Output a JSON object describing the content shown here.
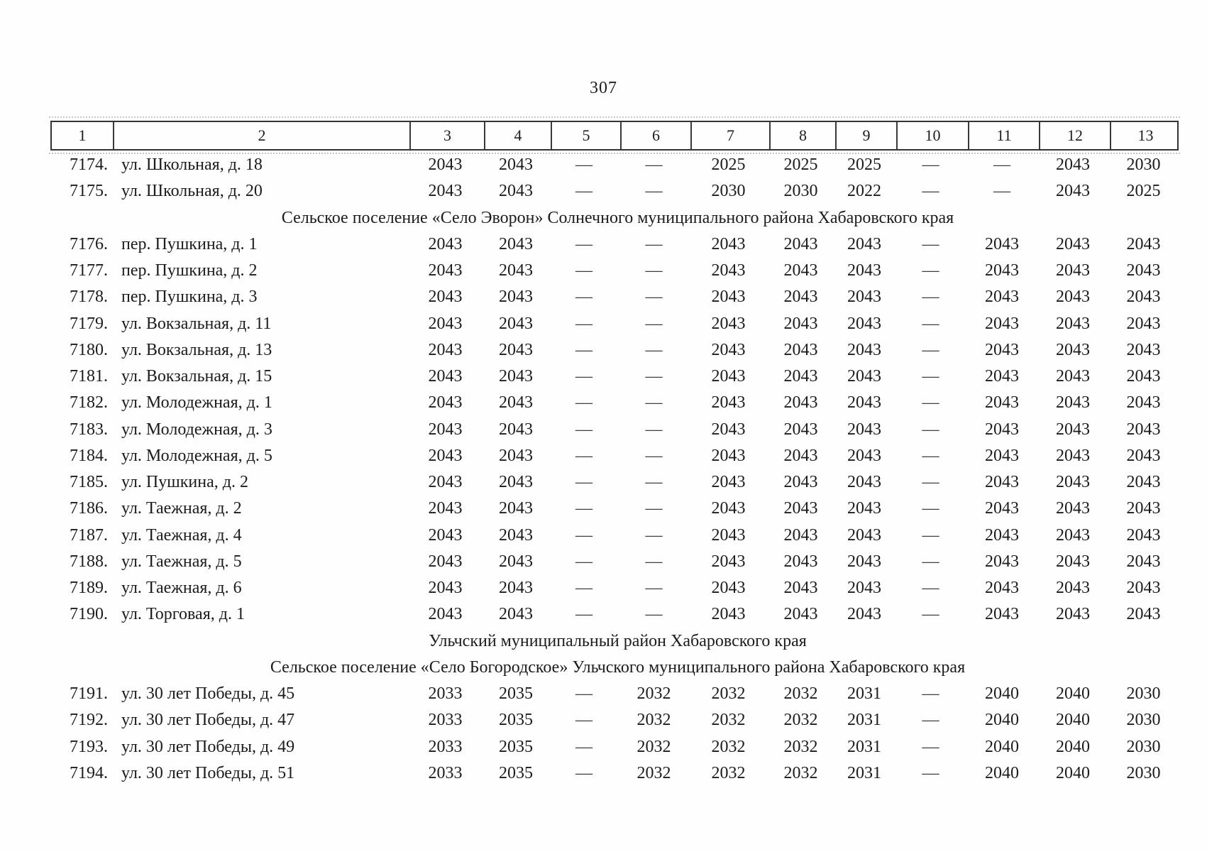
{
  "page": {
    "number": "307"
  },
  "table": {
    "column_headers": [
      "1",
      "2",
      "3",
      "4",
      "5",
      "6",
      "7",
      "8",
      "9",
      "10",
      "11",
      "12",
      "13"
    ],
    "rows": [
      {
        "type": "data",
        "num": "7174.",
        "address": "ул. Школьная, д. 18",
        "values": [
          "2043",
          "2043",
          "—",
          "—",
          "2025",
          "2025",
          "2025",
          "—",
          "—",
          "2043",
          "2030"
        ]
      },
      {
        "type": "data",
        "num": "7175.",
        "address": "ул. Школьная, д. 20",
        "values": [
          "2043",
          "2043",
          "—",
          "—",
          "2030",
          "2030",
          "2022",
          "—",
          "—",
          "2043",
          "2025"
        ]
      },
      {
        "type": "section",
        "label": "Сельское поселение «Село Эворон» Солнечного муниципального района Хабаровского края"
      },
      {
        "type": "data",
        "num": "7176.",
        "address": "пер. Пушкина, д. 1",
        "values": [
          "2043",
          "2043",
          "—",
          "—",
          "2043",
          "2043",
          "2043",
          "—",
          "2043",
          "2043",
          "2043"
        ]
      },
      {
        "type": "data",
        "num": "7177.",
        "address": "пер. Пушкина, д. 2",
        "values": [
          "2043",
          "2043",
          "—",
          "—",
          "2043",
          "2043",
          "2043",
          "—",
          "2043",
          "2043",
          "2043"
        ]
      },
      {
        "type": "data",
        "num": "7178.",
        "address": "пер. Пушкина, д. 3",
        "values": [
          "2043",
          "2043",
          "—",
          "—",
          "2043",
          "2043",
          "2043",
          "—",
          "2043",
          "2043",
          "2043"
        ]
      },
      {
        "type": "data",
        "num": "7179.",
        "address": "ул. Вокзальная, д. 11",
        "values": [
          "2043",
          "2043",
          "—",
          "—",
          "2043",
          "2043",
          "2043",
          "—",
          "2043",
          "2043",
          "2043"
        ]
      },
      {
        "type": "data",
        "num": "7180.",
        "address": "ул. Вокзальная, д. 13",
        "values": [
          "2043",
          "2043",
          "—",
          "—",
          "2043",
          "2043",
          "2043",
          "—",
          "2043",
          "2043",
          "2043"
        ]
      },
      {
        "type": "data",
        "num": "7181.",
        "address": "ул. Вокзальная, д. 15",
        "values": [
          "2043",
          "2043",
          "—",
          "—",
          "2043",
          "2043",
          "2043",
          "—",
          "2043",
          "2043",
          "2043"
        ]
      },
      {
        "type": "data",
        "num": "7182.",
        "address": "ул. Молодежная, д. 1",
        "values": [
          "2043",
          "2043",
          "—",
          "—",
          "2043",
          "2043",
          "2043",
          "—",
          "2043",
          "2043",
          "2043"
        ]
      },
      {
        "type": "data",
        "num": "7183.",
        "address": "ул. Молодежная, д. 3",
        "values": [
          "2043",
          "2043",
          "—",
          "—",
          "2043",
          "2043",
          "2043",
          "—",
          "2043",
          "2043",
          "2043"
        ]
      },
      {
        "type": "data",
        "num": "7184.",
        "address": "ул. Молодежная, д. 5",
        "values": [
          "2043",
          "2043",
          "—",
          "—",
          "2043",
          "2043",
          "2043",
          "—",
          "2043",
          "2043",
          "2043"
        ]
      },
      {
        "type": "data",
        "num": "7185.",
        "address": "ул. Пушкина, д. 2",
        "values": [
          "2043",
          "2043",
          "—",
          "—",
          "2043",
          "2043",
          "2043",
          "—",
          "2043",
          "2043",
          "2043"
        ]
      },
      {
        "type": "data",
        "num": "7186.",
        "address": "ул. Таежная, д. 2",
        "values": [
          "2043",
          "2043",
          "—",
          "—",
          "2043",
          "2043",
          "2043",
          "—",
          "2043",
          "2043",
          "2043"
        ]
      },
      {
        "type": "data",
        "num": "7187.",
        "address": "ул. Таежная, д. 4",
        "values": [
          "2043",
          "2043",
          "—",
          "—",
          "2043",
          "2043",
          "2043",
          "—",
          "2043",
          "2043",
          "2043"
        ]
      },
      {
        "type": "data",
        "num": "7188.",
        "address": "ул. Таежная, д. 5",
        "values": [
          "2043",
          "2043",
          "—",
          "—",
          "2043",
          "2043",
          "2043",
          "—",
          "2043",
          "2043",
          "2043"
        ]
      },
      {
        "type": "data",
        "num": "7189.",
        "address": "ул. Таежная, д. 6",
        "values": [
          "2043",
          "2043",
          "—",
          "—",
          "2043",
          "2043",
          "2043",
          "—",
          "2043",
          "2043",
          "2043"
        ]
      },
      {
        "type": "data",
        "num": "7190.",
        "address": "ул. Торговая, д. 1",
        "values": [
          "2043",
          "2043",
          "—",
          "—",
          "2043",
          "2043",
          "2043",
          "—",
          "2043",
          "2043",
          "2043"
        ]
      },
      {
        "type": "section",
        "label": "Ульчский муниципальный район Хабаровского края"
      },
      {
        "type": "section",
        "label": "Сельское поселение «Село Богородское» Ульчского муниципального района Хабаровского края"
      },
      {
        "type": "data",
        "num": "7191.",
        "address": "ул. 30 лет Победы, д. 45",
        "values": [
          "2033",
          "2035",
          "—",
          "2032",
          "2032",
          "2032",
          "2031",
          "—",
          "2040",
          "2040",
          "2030"
        ]
      },
      {
        "type": "data",
        "num": "7192.",
        "address": "ул. 30 лет Победы, д. 47",
        "values": [
          "2033",
          "2035",
          "—",
          "2032",
          "2032",
          "2032",
          "2031",
          "—",
          "2040",
          "2040",
          "2030"
        ]
      },
      {
        "type": "data",
        "num": "7193.",
        "address": "ул. 30 лет Победы, д. 49",
        "values": [
          "2033",
          "2035",
          "—",
          "2032",
          "2032",
          "2032",
          "2031",
          "—",
          "2040",
          "2040",
          "2030"
        ]
      },
      {
        "type": "data",
        "num": "7194.",
        "address": "ул. 30 лет Победы, д. 51",
        "values": [
          "2033",
          "2035",
          "—",
          "2032",
          "2032",
          "2032",
          "2031",
          "—",
          "2040",
          "2040",
          "2030"
        ]
      }
    ]
  }
}
